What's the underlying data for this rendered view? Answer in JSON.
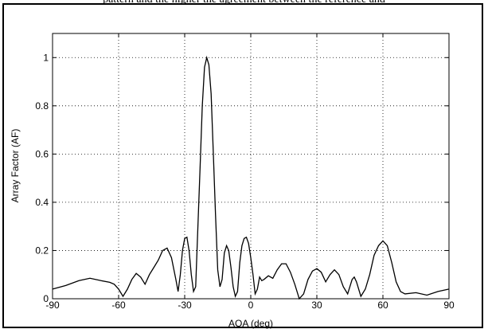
{
  "caption": "pattern and the higher the agreement between the reference and",
  "chart_data": {
    "type": "line",
    "title": "",
    "xlabel": "AOA (deg)",
    "ylabel": "Array Factor (AF)",
    "xlim": [
      -90,
      90
    ],
    "ylim": [
      0,
      1.1
    ],
    "xticks": [
      -90,
      -60,
      -30,
      0,
      30,
      60,
      90
    ],
    "yticks": [
      0,
      0.2,
      0.4,
      0.6,
      0.8,
      1
    ],
    "ytick_labels": [
      "0",
      "0.2",
      "0.4",
      "0.6",
      "0.8",
      "1"
    ],
    "grid": true,
    "line_color": "#000000",
    "series": [
      {
        "x": [
          -90,
          -84,
          -78,
          -73,
          -68,
          -64,
          -62,
          -60,
          -58,
          -56,
          -54,
          -52,
          -50,
          -48,
          -46,
          -44,
          -42,
          -40,
          -38,
          -36,
          -34,
          -33,
          -32,
          -31,
          -30,
          -29,
          -28,
          -27,
          -26,
          -25,
          -24,
          -23,
          -22,
          -21,
          -20,
          -19,
          -18,
          -17,
          -16,
          -15,
          -14,
          -13,
          -12,
          -11,
          -10,
          -9,
          -8,
          -7,
          -6,
          -5,
          -4,
          -3,
          -2,
          -1,
          0,
          1,
          2,
          3,
          4,
          5,
          6,
          8,
          10,
          12,
          14,
          16,
          18,
          20,
          22,
          24,
          26,
          28,
          30,
          32,
          34,
          36,
          38,
          40,
          42,
          44,
          46,
          47,
          48,
          50,
          52,
          54,
          56,
          58,
          60,
          62,
          64,
          66,
          68,
          70,
          75,
          80,
          85,
          90
        ],
        "y": [
          0.04,
          0.055,
          0.075,
          0.085,
          0.075,
          0.068,
          0.06,
          0.04,
          0.01,
          0.04,
          0.08,
          0.105,
          0.09,
          0.06,
          0.1,
          0.13,
          0.16,
          0.2,
          0.21,
          0.17,
          0.08,
          0.03,
          0.1,
          0.2,
          0.25,
          0.255,
          0.2,
          0.1,
          0.03,
          0.05,
          0.3,
          0.55,
          0.8,
          0.96,
          1.0,
          0.97,
          0.85,
          0.6,
          0.35,
          0.12,
          0.05,
          0.08,
          0.19,
          0.22,
          0.2,
          0.13,
          0.05,
          0.01,
          0.03,
          0.15,
          0.22,
          0.25,
          0.255,
          0.23,
          0.17,
          0.1,
          0.02,
          0.04,
          0.09,
          0.075,
          0.08,
          0.095,
          0.085,
          0.12,
          0.145,
          0.145,
          0.11,
          0.06,
          0.0,
          0.02,
          0.08,
          0.115,
          0.125,
          0.11,
          0.07,
          0.1,
          0.12,
          0.1,
          0.05,
          0.02,
          0.08,
          0.09,
          0.07,
          0.01,
          0.04,
          0.1,
          0.18,
          0.22,
          0.24,
          0.22,
          0.15,
          0.07,
          0.03,
          0.02,
          0.025,
          0.015,
          0.03,
          0.04
        ]
      }
    ]
  }
}
